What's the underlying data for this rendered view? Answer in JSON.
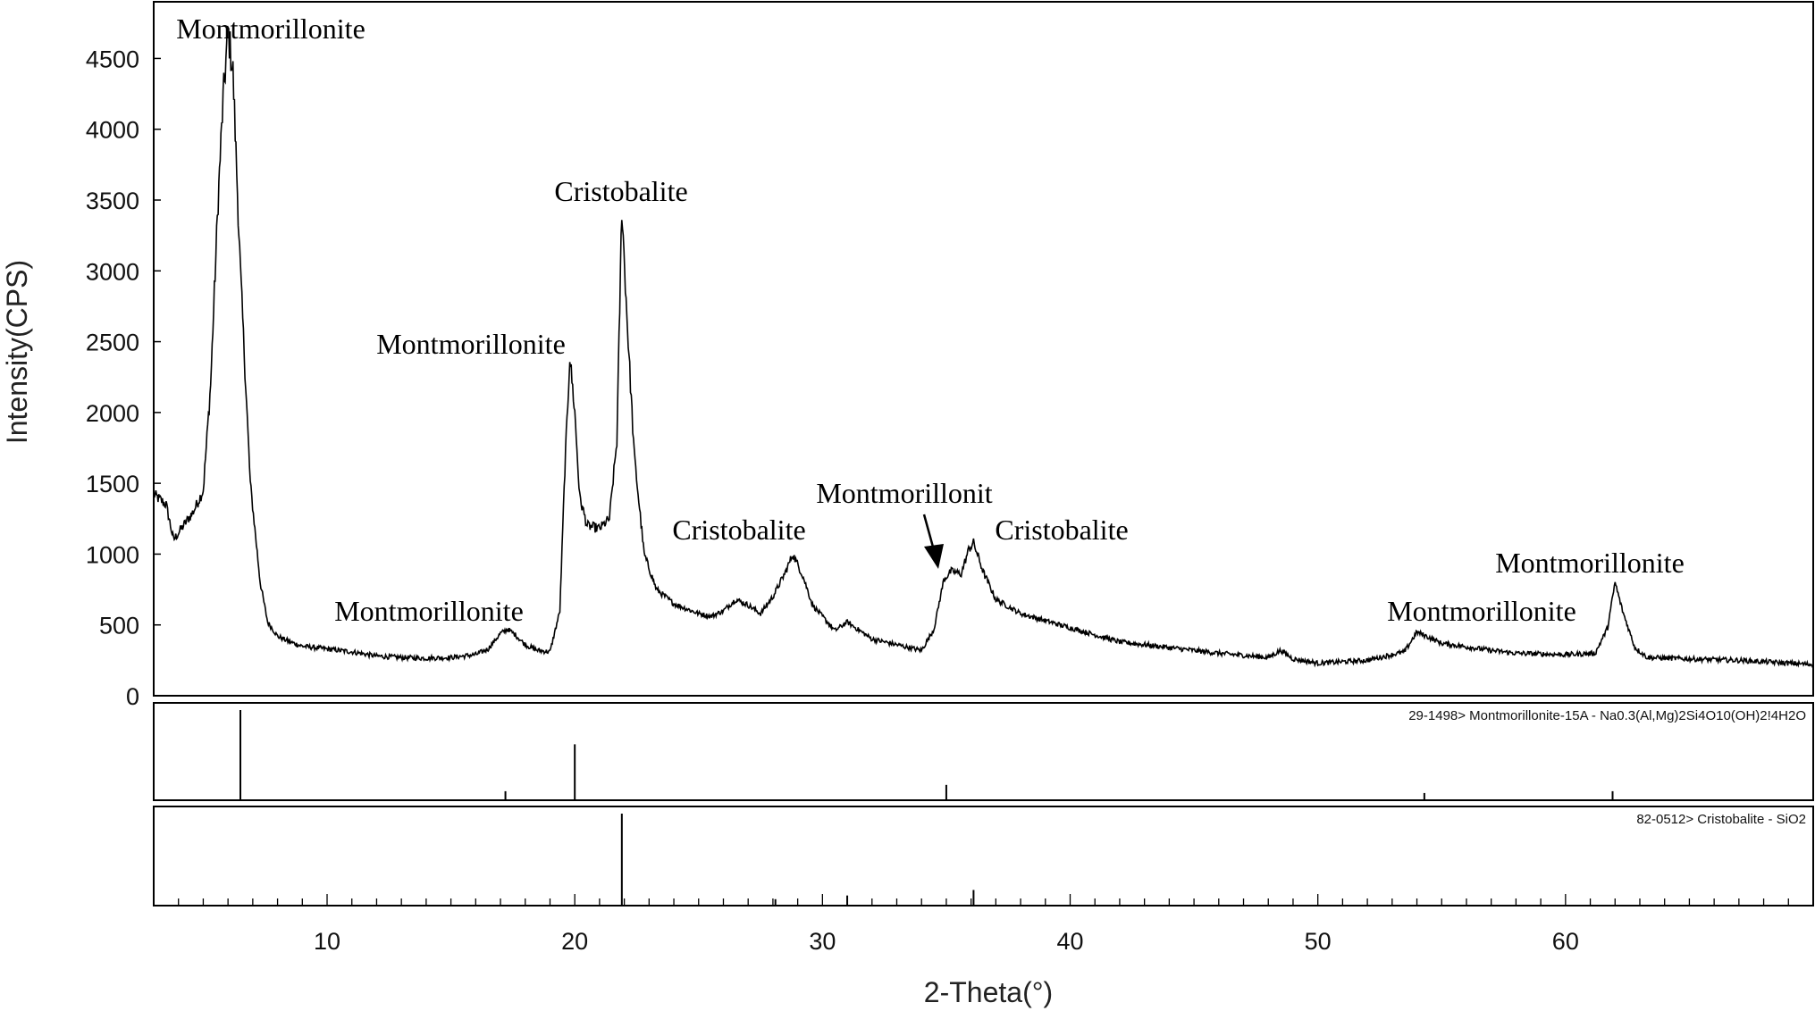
{
  "chart_data": {
    "type": "line",
    "xlabel": "2-Theta(°)",
    "ylabel": "Intensity(CPS)",
    "xlim": [
      3,
      70
    ],
    "ylim": [
      0,
      4900
    ],
    "x_ticks": [
      10,
      20,
      30,
      40,
      50,
      60
    ],
    "y_ticks": [
      0,
      500,
      1000,
      1500,
      2000,
      2500,
      3000,
      3500,
      4000,
      4500
    ],
    "grid": false,
    "legend": "none",
    "series": [
      {
        "x": [
          3,
          3.5,
          3.8,
          4.2,
          4.6,
          5.0,
          5.3,
          5.6,
          5.8,
          6.0,
          6.2,
          6.5,
          6.9,
          7.3,
          7.6,
          8.0,
          8.5,
          9,
          9.5,
          10,
          11,
          12,
          13,
          14,
          15,
          16,
          16.5,
          17,
          17.3,
          17.6,
          18,
          18.5,
          19,
          19.4,
          19.6,
          19.8,
          20.0,
          20.2,
          20.5,
          21.0,
          21.4,
          21.7,
          21.9,
          22.1,
          22.4,
          22.8,
          23.3,
          24,
          25,
          25.5,
          26,
          26.5,
          27,
          27.5,
          28,
          28.5,
          28.8,
          29.2,
          29.6,
          30,
          30.5,
          31,
          31.5,
          32,
          33,
          34,
          34.5,
          34.9,
          35.2,
          35.6,
          35.9,
          36.1,
          36.5,
          37,
          38,
          40,
          42,
          44,
          46,
          48,
          48.5,
          49,
          50,
          52,
          53.5,
          54,
          55,
          57,
          58,
          60,
          61.2,
          61.7,
          62,
          62.3,
          62.8,
          63.3,
          65,
          67,
          69,
          70
        ],
        "values": [
          1420,
          1350,
          1100,
          1200,
          1300,
          1450,
          2200,
          3500,
          4200,
          4700,
          4400,
          3000,
          1500,
          800,
          520,
          420,
          380,
          350,
          340,
          330,
          310,
          280,
          270,
          265,
          270,
          290,
          330,
          440,
          470,
          430,
          360,
          320,
          310,
          600,
          1600,
          2400,
          2000,
          1400,
          1200,
          1180,
          1250,
          1800,
          3450,
          2700,
          1700,
          1000,
          750,
          650,
          580,
          560,
          600,
          680,
          640,
          580,
          700,
          870,
          1000,
          850,
          640,
          560,
          460,
          520,
          460,
          400,
          360,
          320,
          470,
          820,
          880,
          860,
          1030,
          1080,
          870,
          680,
          580,
          480,
          380,
          340,
          300,
          270,
          320,
          260,
          230,
          250,
          310,
          450,
          370,
          320,
          300,
          290,
          300,
          480,
          800,
          600,
          340,
          270,
          260,
          250,
          230,
          220
        ]
      }
    ],
    "annotations": [
      "Montmorillonite",
      "Cristobalite",
      "Montmorillonite",
      "Montmorillonite",
      "Cristobalite",
      "Montmorillonit",
      "Cristobalite",
      "Montmorillonite",
      "Montmorillonite"
    ],
    "reference_patterns": [
      {
        "caption": "29-1498> Montmorillonite-15A - Na0.3(Al,Mg)2Si4O10(OH)2!4H2O",
        "sticks": [
          {
            "x": 6.5,
            "rel": 1.0
          },
          {
            "x": 17.2,
            "rel": 0.1
          },
          {
            "x": 20.0,
            "rel": 0.62
          },
          {
            "x": 35.0,
            "rel": 0.17
          },
          {
            "x": 54.3,
            "rel": 0.08
          },
          {
            "x": 61.9,
            "rel": 0.1
          }
        ]
      },
      {
        "caption": "82-0512> Cristobalite - SiO2",
        "sticks": [
          {
            "x": 21.9,
            "rel": 1.0
          },
          {
            "x": 28.1,
            "rel": 0.07
          },
          {
            "x": 31.0,
            "rel": 0.11
          },
          {
            "x": 36.1,
            "rel": 0.17
          }
        ]
      }
    ]
  }
}
